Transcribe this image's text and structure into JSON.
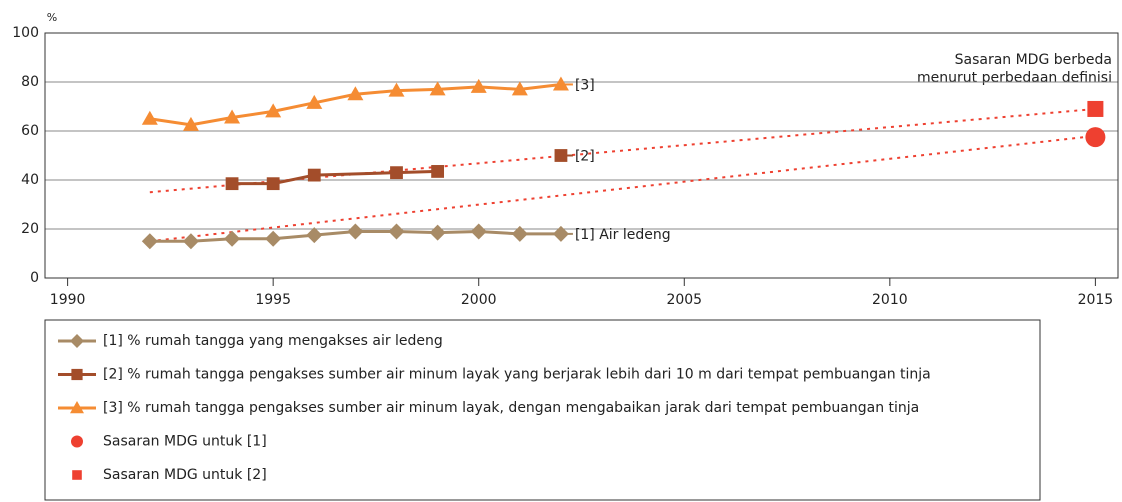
{
  "chart_data": {
    "type": "line",
    "y_unit_label": "%",
    "xlim": [
      1989.45,
      2015.55
    ],
    "ylim": [
      0,
      100
    ],
    "xticks": [
      1990,
      1995,
      2000,
      2005,
      2010,
      2015
    ],
    "yticks": [
      0,
      20,
      40,
      60,
      80,
      100
    ],
    "grid": true,
    "annotation": [
      "Sasaran MDG berbeda",
      "menurut perbedaan definisi"
    ],
    "series": [
      {
        "name": "[1] % rumah tangga yang mengakses air ledeng",
        "color": "#a88b66",
        "marker": "diamond",
        "line": true,
        "end_label": "[1] Air ledeng",
        "x": [
          1992,
          1993,
          1994,
          1995,
          1996,
          1997,
          1998,
          1999,
          2000,
          2001,
          2002
        ],
        "values": [
          15,
          15,
          16,
          16,
          17.5,
          19,
          19,
          18.5,
          19,
          18,
          18
        ]
      },
      {
        "name": "[2] % rumah tangga pengakses sumber air minum layak yang berjarak lebih dari 10 m dari tempat pembuangan tinja",
        "color": "#a34d2a",
        "marker": "square",
        "line": true,
        "end_label": "[2]",
        "x": [
          1994,
          1995,
          1996,
          1998,
          1999,
          2000,
          2002
        ],
        "values": [
          38.5,
          38.5,
          42,
          43,
          43.5,
          null,
          50
        ]
      },
      {
        "name": "[3] % rumah tangga pengakses sumber air minum layak, dengan mengabaikan jarak dari tempat pembuangan tinja",
        "color": "#f58c33",
        "marker": "triangle",
        "line": true,
        "end_label": "[3]",
        "x": [
          1992,
          1993,
          1994,
          1995,
          1996,
          1997,
          1998,
          1999,
          2000,
          2001,
          2002
        ],
        "values": [
          65,
          62.5,
          65.5,
          68,
          71.5,
          75,
          76.5,
          77,
          78,
          77,
          79
        ]
      },
      {
        "name": "Sasaran MDG untuk [1]",
        "color": "#ee4030",
        "marker": "circle",
        "line": false,
        "x": [
          2015
        ],
        "values": [
          57.5
        ]
      },
      {
        "name": "Sasaran MDG untuk [2]",
        "color": "#ee4030",
        "marker": "square",
        "line": false,
        "x": [
          2015
        ],
        "values": [
          69
        ]
      }
    ],
    "trend_lines": [
      {
        "color": "#ee4030",
        "x": [
          1992,
          2015
        ],
        "values": [
          35,
          69
        ]
      },
      {
        "color": "#ee4030",
        "x": [
          1992,
          2015
        ],
        "values": [
          15,
          58
        ]
      }
    ]
  }
}
